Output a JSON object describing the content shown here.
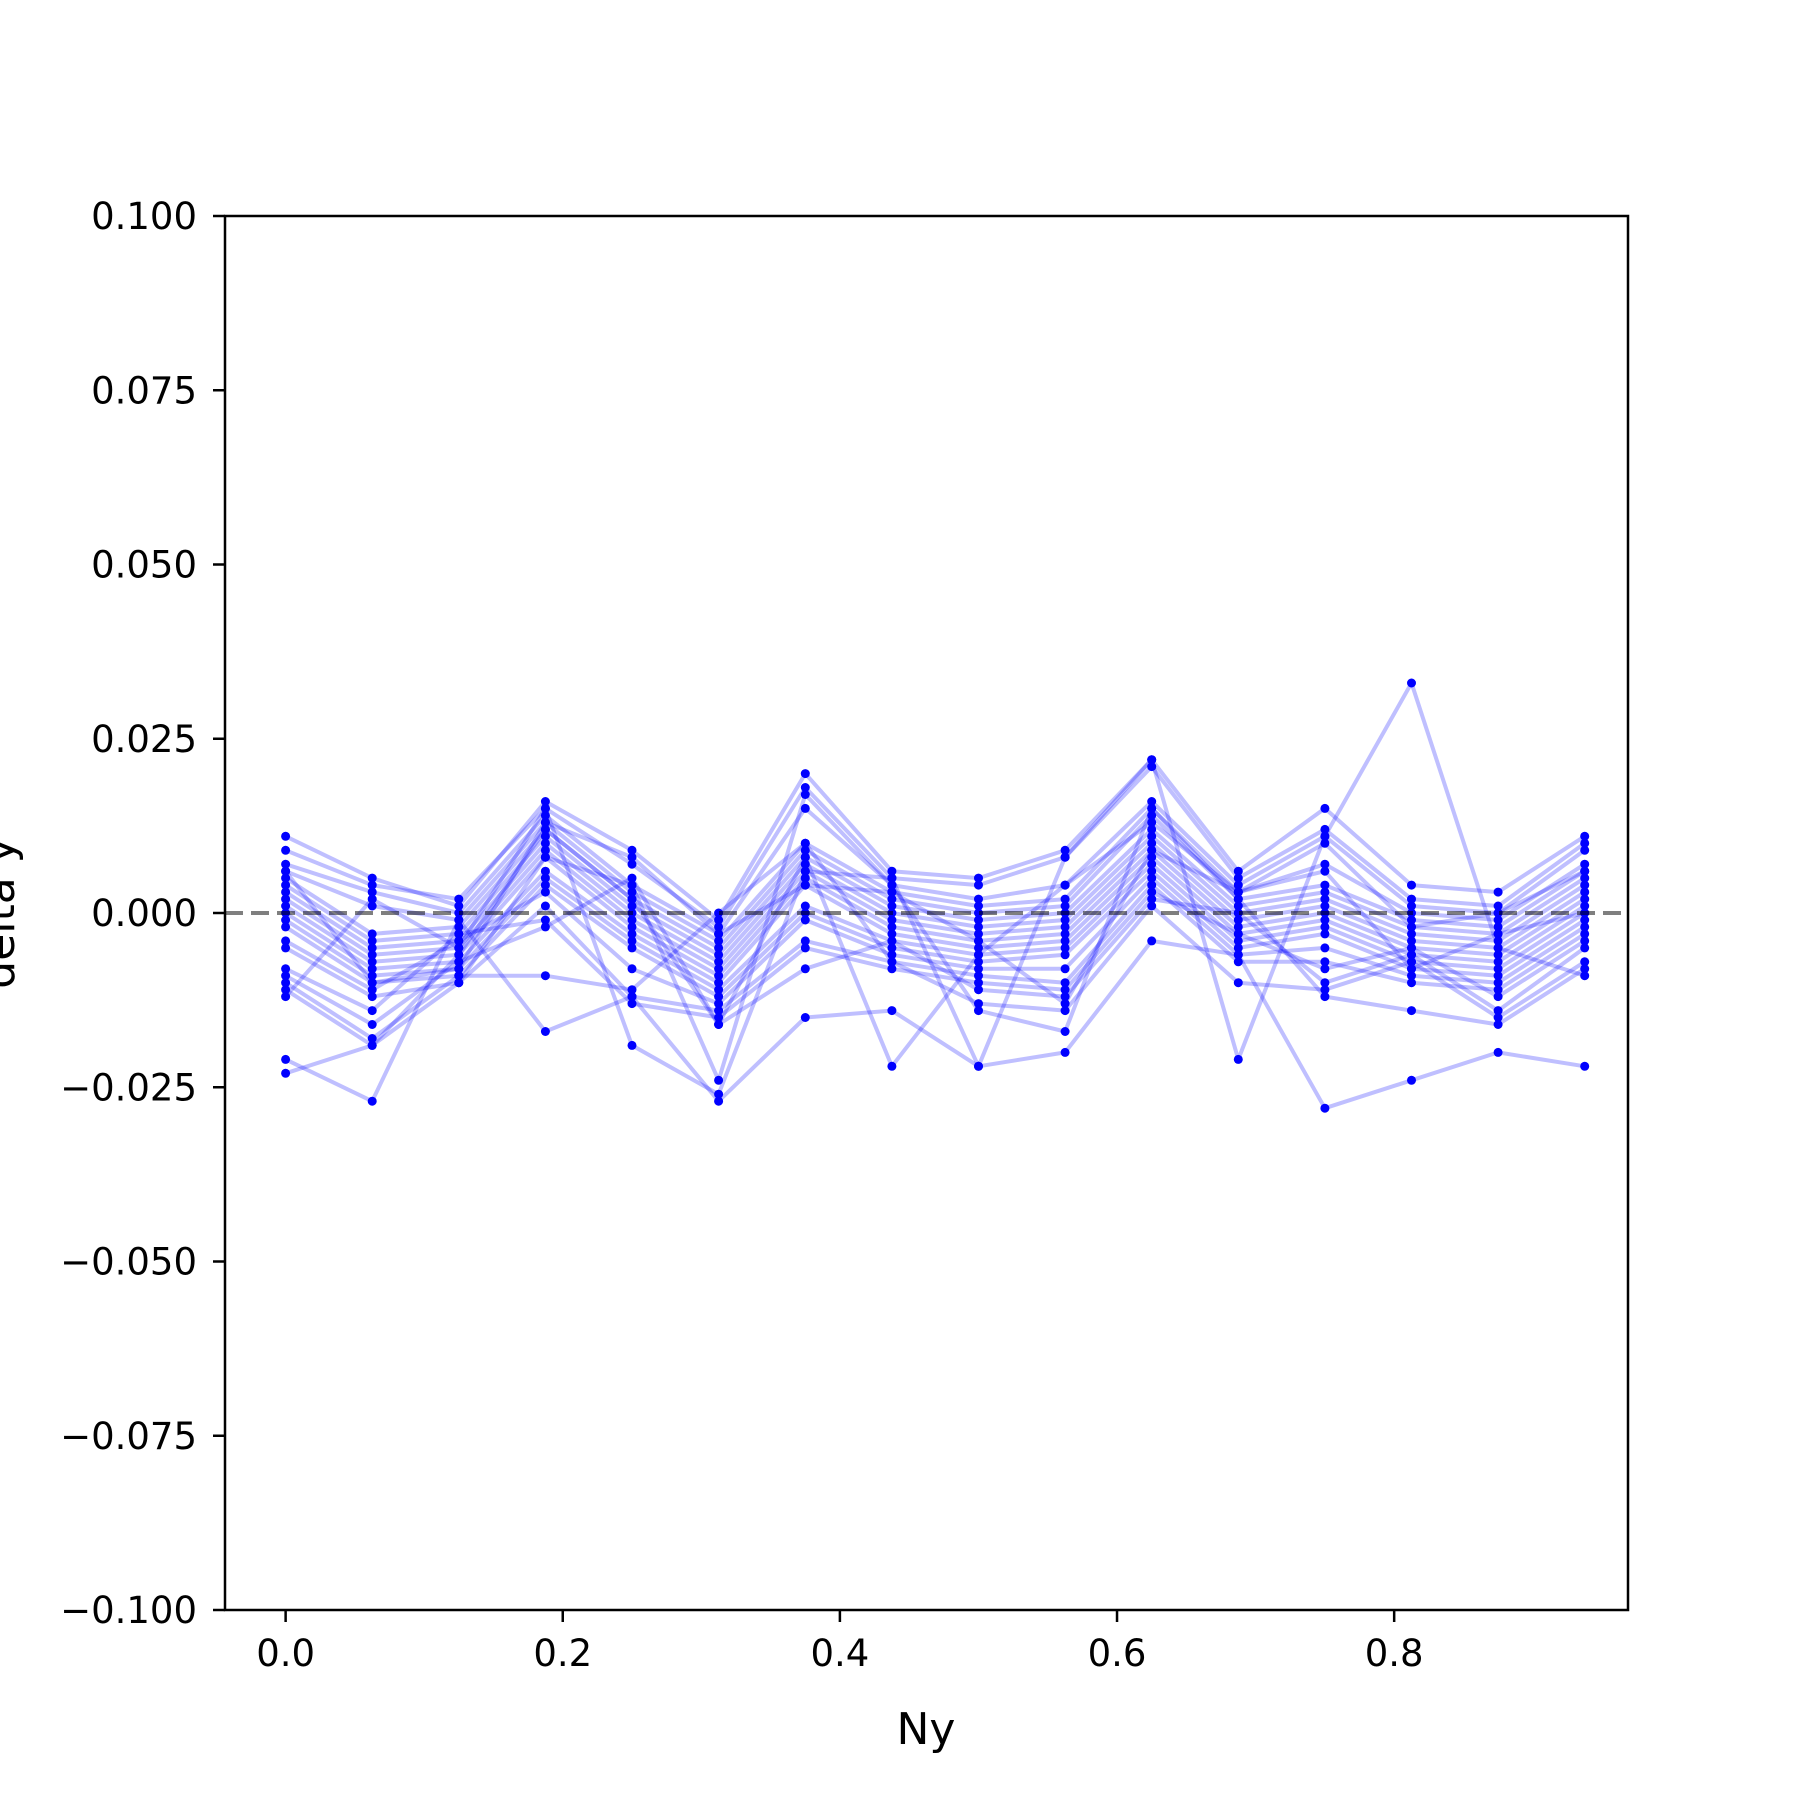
{
  "chart_data": {
    "type": "line",
    "title": "",
    "xlabel": "Ny",
    "ylabel": "delta y",
    "xlim": [
      -0.04375,
      0.96875
    ],
    "ylim": [
      -0.1,
      0.1
    ],
    "x_ticks": [
      {
        "value": 0.0,
        "label": "0.0"
      },
      {
        "value": 0.2,
        "label": "0.2"
      },
      {
        "value": 0.4,
        "label": "0.4"
      },
      {
        "value": 0.6,
        "label": "0.6"
      },
      {
        "value": 0.8,
        "label": "0.8"
      }
    ],
    "y_ticks": [
      {
        "value": 0.1,
        "label": "0.100"
      },
      {
        "value": 0.075,
        "label": "0.075"
      },
      {
        "value": 0.05,
        "label": "0.050"
      },
      {
        "value": 0.025,
        "label": "0.025"
      },
      {
        "value": 0.0,
        "label": "0.000"
      },
      {
        "value": -0.025,
        "label": "−0.025"
      },
      {
        "value": -0.05,
        "label": "−0.050"
      },
      {
        "value": -0.075,
        "label": "−0.075"
      },
      {
        "value": -0.1,
        "label": "−0.100"
      }
    ],
    "reference_line": {
      "y": 0.0,
      "style": "dashed",
      "color": "#7f7f7f"
    },
    "series_color": "#0000ff",
    "grid": false,
    "x": [
      0.0,
      0.0625,
      0.125,
      0.1875,
      0.25,
      0.3125,
      0.375,
      0.4375,
      0.5,
      0.5625,
      0.625,
      0.6875,
      0.75,
      0.8125,
      0.875,
      0.9375
    ],
    "series": [
      {
        "values": [
          0.011,
          0.005,
          0.001,
          0.016,
          0.009,
          -0.001,
          0.02,
          0.006,
          0.005,
          0.009,
          0.022,
          0.006,
          0.015,
          0.004,
          0.003,
          0.011
        ]
      },
      {
        "values": [
          0.009,
          0.004,
          0.002,
          0.015,
          0.007,
          -0.002,
          0.018,
          0.005,
          0.004,
          0.008,
          0.021,
          0.005,
          0.012,
          0.002,
          0.001,
          0.01
        ]
      },
      {
        "values": [
          0.007,
          0.003,
          0.0,
          0.014,
          0.004,
          -0.003,
          0.015,
          0.004,
          0.002,
          0.004,
          0.016,
          0.004,
          0.011,
          0.001,
          0.0,
          0.009
        ]
      },
      {
        "values": [
          0.006,
          0.001,
          -0.001,
          0.013,
          0.003,
          -0.004,
          0.01,
          0.003,
          0.001,
          0.002,
          0.015,
          0.003,
          0.007,
          0.0,
          -0.001,
          0.007
        ]
      },
      {
        "values": [
          0.005,
          -0.003,
          -0.002,
          0.012,
          0.002,
          -0.005,
          0.009,
          0.002,
          0.0,
          0.001,
          0.014,
          0.002,
          0.004,
          -0.001,
          -0.002,
          0.006
        ]
      },
      {
        "values": [
          0.004,
          -0.004,
          -0.003,
          0.011,
          0.001,
          -0.006,
          0.008,
          0.001,
          -0.001,
          0.0,
          0.012,
          0.001,
          0.003,
          -0.002,
          -0.003,
          0.005
        ]
      },
      {
        "values": [
          0.003,
          -0.005,
          -0.004,
          0.01,
          0.0,
          -0.007,
          0.007,
          0.0,
          -0.002,
          -0.001,
          0.011,
          0.0,
          0.002,
          -0.003,
          -0.004,
          0.004
        ]
      },
      {
        "values": [
          0.002,
          -0.006,
          -0.005,
          0.009,
          -0.001,
          -0.008,
          0.006,
          -0.001,
          -0.003,
          -0.002,
          0.01,
          -0.001,
          0.001,
          -0.004,
          -0.005,
          0.003
        ]
      },
      {
        "values": [
          0.001,
          -0.007,
          -0.006,
          0.008,
          -0.002,
          -0.009,
          0.005,
          -0.002,
          -0.004,
          -0.003,
          0.009,
          -0.002,
          0.0,
          -0.005,
          -0.006,
          0.002
        ]
      },
      {
        "values": [
          0.0,
          -0.008,
          -0.007,
          0.006,
          -0.003,
          -0.01,
          0.004,
          -0.003,
          -0.005,
          -0.004,
          0.008,
          -0.003,
          -0.001,
          -0.006,
          -0.007,
          0.001
        ]
      },
      {
        "values": [
          -0.001,
          -0.009,
          -0.008,
          0.005,
          -0.004,
          -0.011,
          0.001,
          -0.004,
          -0.006,
          -0.005,
          0.007,
          -0.004,
          -0.002,
          -0.007,
          -0.008,
          0.0
        ]
      },
      {
        "values": [
          -0.002,
          -0.01,
          -0.009,
          0.004,
          -0.005,
          -0.012,
          0.0,
          -0.005,
          -0.007,
          -0.006,
          0.006,
          -0.005,
          -0.003,
          -0.008,
          -0.009,
          -0.001
        ]
      },
      {
        "values": [
          -0.004,
          -0.011,
          -0.004,
          0.003,
          -0.008,
          -0.013,
          -0.001,
          -0.006,
          -0.008,
          -0.008,
          0.005,
          -0.006,
          -0.005,
          -0.009,
          -0.01,
          -0.002
        ]
      },
      {
        "values": [
          -0.005,
          -0.012,
          -0.01,
          0.001,
          -0.012,
          -0.014,
          -0.004,
          -0.007,
          -0.009,
          -0.01,
          0.004,
          -0.007,
          -0.007,
          -0.01,
          -0.011,
          -0.003
        ]
      },
      {
        "values": [
          -0.008,
          -0.014,
          -0.003,
          -0.001,
          -0.013,
          -0.015,
          -0.005,
          -0.008,
          -0.01,
          -0.011,
          0.003,
          -0.003,
          -0.008,
          -0.005,
          -0.012,
          -0.004
        ]
      },
      {
        "values": [
          -0.009,
          -0.016,
          -0.007,
          -0.002,
          0.005,
          -0.016,
          -0.008,
          -0.004,
          -0.011,
          -0.012,
          0.002,
          0.0,
          -0.01,
          -0.006,
          -0.014,
          -0.005
        ]
      },
      {
        "values": [
          -0.01,
          -0.018,
          -0.009,
          -0.009,
          -0.011,
          0.0,
          0.01,
          -0.007,
          -0.013,
          -0.014,
          0.001,
          -0.01,
          -0.011,
          -0.007,
          -0.015,
          -0.007
        ]
      },
      {
        "values": [
          -0.011,
          -0.019,
          -0.01,
          0.008,
          0.004,
          -0.024,
          0.017,
          0.004,
          -0.014,
          -0.017,
          0.015,
          0.002,
          -0.012,
          -0.014,
          -0.016,
          -0.008
        ]
      },
      {
        "values": [
          -0.012,
          0.002,
          -0.005,
          0.015,
          -0.019,
          -0.026,
          0.006,
          0.005,
          -0.022,
          0.008,
          0.022,
          -0.021,
          0.011,
          0.033,
          -0.005,
          -0.009
        ]
      },
      {
        "values": [
          -0.021,
          -0.027,
          -0.001,
          -0.017,
          -0.012,
          -0.027,
          -0.015,
          -0.014,
          -0.022,
          -0.02,
          -0.004,
          -0.006,
          -0.028,
          -0.024,
          -0.02,
          -0.022
        ]
      },
      {
        "values": [
          -0.023,
          -0.019,
          -0.006,
          0.012,
          0.002,
          -0.016,
          0.008,
          -0.022,
          -0.006,
          0.004,
          0.013,
          0.003,
          0.006,
          -0.008,
          -0.003,
          0.0
        ]
      },
      {
        "values": [
          0.006,
          -0.01,
          -0.008,
          0.013,
          0.008,
          -0.003,
          0.004,
          0.003,
          -0.004,
          -0.013,
          0.009,
          0.003,
          0.01,
          -0.002,
          0.0,
          0.006
        ]
      }
    ]
  }
}
